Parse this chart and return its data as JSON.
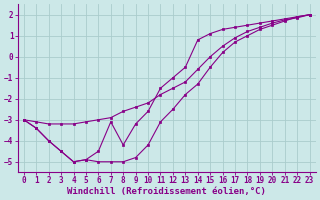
{
  "xlabel": "Windchill (Refroidissement éolien,°C)",
  "bg_color": "#cce8e8",
  "line_color": "#880088",
  "grid_color": "#b8d8d8",
  "xlim": [
    -0.5,
    23.5
  ],
  "ylim": [
    -5.5,
    2.5
  ],
  "yticks": [
    2,
    1,
    0,
    -1,
    -2,
    -3,
    -4,
    -5
  ],
  "xticks": [
    0,
    1,
    2,
    3,
    4,
    5,
    6,
    7,
    8,
    9,
    10,
    11,
    12,
    13,
    14,
    15,
    16,
    17,
    18,
    19,
    20,
    21,
    22,
    23
  ],
  "curve1_x": [
    0,
    1,
    2,
    3,
    4,
    5,
    6,
    7,
    8,
    9,
    10,
    11,
    12,
    13,
    14,
    15,
    16,
    17,
    18,
    19,
    20,
    21,
    22,
    23
  ],
  "curve1_y": [
    -3.0,
    -3.4,
    -4.0,
    -4.5,
    -5.0,
    -4.9,
    -4.5,
    -3.1,
    -4.2,
    -3.2,
    -2.6,
    -1.5,
    -1.0,
    -0.5,
    0.8,
    1.1,
    1.3,
    1.4,
    1.5,
    1.6,
    1.7,
    1.8,
    1.9,
    2.0
  ],
  "curve2_x": [
    0,
    1,
    2,
    3,
    4,
    5,
    6,
    7,
    8,
    9,
    10,
    11,
    12,
    13,
    14,
    15,
    16,
    17,
    18,
    19,
    20,
    21,
    22,
    23
  ],
  "curve2_y": [
    -3.0,
    -3.4,
    -4.0,
    -4.5,
    -5.0,
    -4.9,
    -5.0,
    -5.0,
    -5.0,
    -4.8,
    -4.2,
    -3.1,
    -2.5,
    -1.8,
    -1.3,
    -0.5,
    0.2,
    0.7,
    1.0,
    1.3,
    1.5,
    1.7,
    1.9,
    2.0
  ],
  "curve3_x": [
    0,
    1,
    2,
    3,
    4,
    5,
    6,
    7,
    8,
    9,
    10,
    11,
    12,
    13,
    14,
    15,
    16,
    17,
    18,
    19,
    20,
    21,
    22,
    23
  ],
  "curve3_y": [
    -3.0,
    -3.1,
    -3.2,
    -3.2,
    -3.2,
    -3.1,
    -3.0,
    -2.9,
    -2.6,
    -2.4,
    -2.2,
    -1.8,
    -1.5,
    -1.2,
    -0.6,
    0.0,
    0.5,
    0.9,
    1.2,
    1.4,
    1.6,
    1.75,
    1.85,
    2.0
  ],
  "tick_fontsize": 5.5,
  "label_fontsize": 6.5
}
